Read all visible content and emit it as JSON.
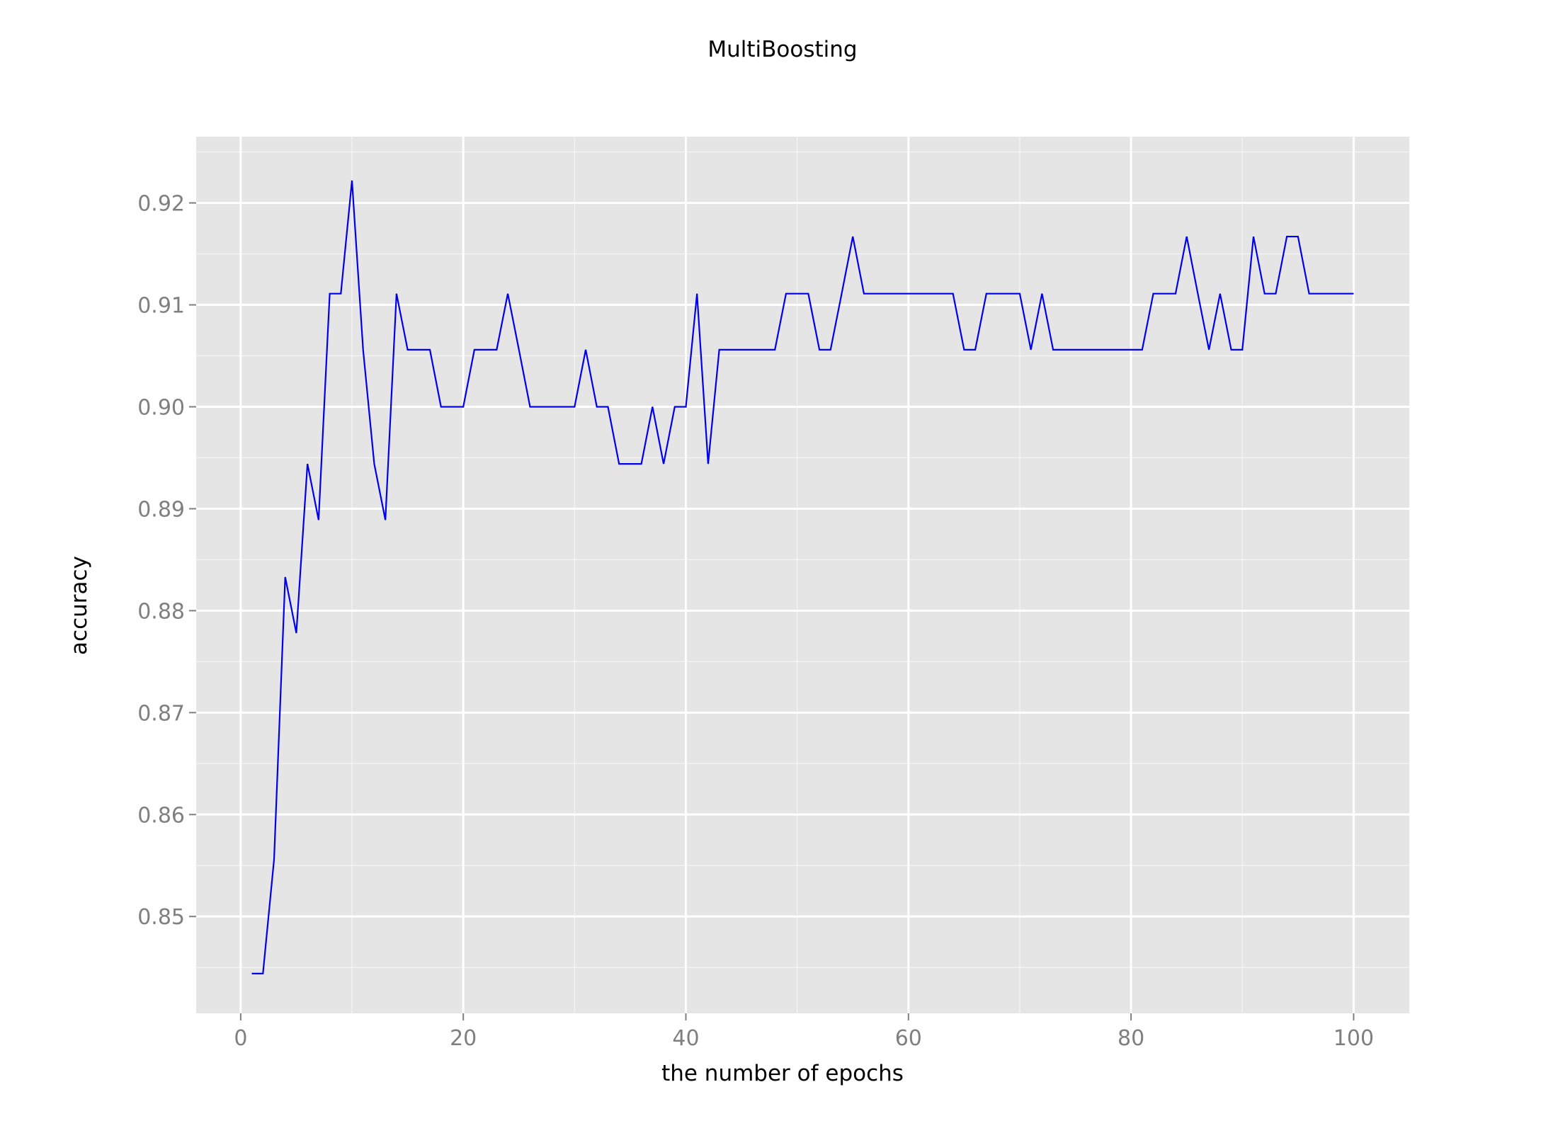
{
  "chart_data": {
    "type": "line",
    "title": "MultiBoosting",
    "xlabel": "the number of epochs",
    "ylabel": "accuracy",
    "xlim": [
      -4,
      105
    ],
    "ylim": [
      0.8405,
      0.9265
    ],
    "xticks": [
      0,
      20,
      40,
      60,
      80,
      100
    ],
    "xtick_labels": [
      "0",
      "20",
      "40",
      "60",
      "80",
      "100"
    ],
    "yticks": [
      0.85,
      0.86,
      0.87,
      0.88,
      0.89,
      0.9,
      0.91,
      0.92
    ],
    "ytick_labels": [
      "0.85",
      "0.86",
      "0.87",
      "0.88",
      "0.89",
      "0.90",
      "0.91",
      "0.92"
    ],
    "grid": true,
    "background_color": "#e5e5e5",
    "grid_color": "#ffffff",
    "series": [
      {
        "color": "#0000ee",
        "x": [
          1,
          2,
          3,
          4,
          5,
          6,
          7,
          8,
          9,
          10,
          11,
          12,
          13,
          14,
          15,
          16,
          17,
          18,
          19,
          20,
          21,
          22,
          23,
          24,
          25,
          26,
          27,
          28,
          29,
          30,
          31,
          32,
          33,
          34,
          35,
          36,
          37,
          38,
          39,
          40,
          41,
          42,
          43,
          44,
          45,
          46,
          47,
          48,
          49,
          50,
          51,
          52,
          53,
          54,
          55,
          56,
          57,
          58,
          59,
          60,
          61,
          62,
          63,
          64,
          65,
          66,
          67,
          68,
          69,
          70,
          71,
          72,
          73,
          74,
          75,
          76,
          77,
          78,
          79,
          80,
          81,
          82,
          83,
          84,
          85,
          86,
          87,
          88,
          89,
          90,
          91,
          92,
          93,
          94,
          95,
          96,
          97,
          98,
          99,
          100
        ],
        "y": [
          0.8444,
          0.8444,
          0.8556,
          0.8833,
          0.8778,
          0.8944,
          0.8889,
          0.9111,
          0.9111,
          0.9222,
          0.9056,
          0.8944,
          0.8889,
          0.9111,
          0.9056,
          0.9056,
          0.9056,
          0.9,
          0.9,
          0.9,
          0.9056,
          0.9056,
          0.9056,
          0.9111,
          0.9056,
          0.9,
          0.9,
          0.9,
          0.9,
          0.9,
          0.9056,
          0.9,
          0.9,
          0.8944,
          0.8944,
          0.8944,
          0.9,
          0.8944,
          0.9,
          0.9,
          0.9111,
          0.8944,
          0.9056,
          0.9056,
          0.9056,
          0.9056,
          0.9056,
          0.9056,
          0.9111,
          0.9111,
          0.9111,
          0.9056,
          0.9056,
          0.9111,
          0.9167,
          0.9111,
          0.9111,
          0.9111,
          0.9111,
          0.9111,
          0.9111,
          0.9111,
          0.9111,
          0.9111,
          0.9056,
          0.9056,
          0.9111,
          0.9111,
          0.9111,
          0.9111,
          0.9056,
          0.9111,
          0.9056,
          0.9056,
          0.9056,
          0.9056,
          0.9056,
          0.9056,
          0.9056,
          0.9056,
          0.9056,
          0.9111,
          0.9111,
          0.9111,
          0.9167,
          0.9111,
          0.9056,
          0.9111,
          0.9056,
          0.9056,
          0.9167,
          0.9111,
          0.9111,
          0.9167,
          0.9167,
          0.9111,
          0.9111,
          0.9111,
          0.9111,
          0.9111
        ]
      }
    ]
  }
}
